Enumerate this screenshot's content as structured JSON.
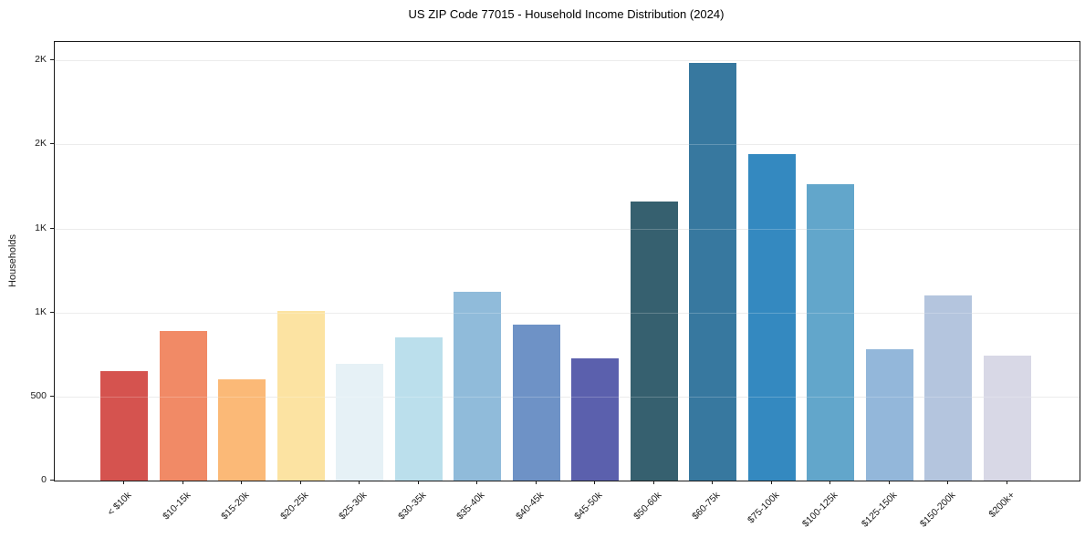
{
  "title": "US ZIP Code 77015 - Household Income Distribution (2024)",
  "background_color": "#ffffff",
  "chart_data": {
    "type": "bar",
    "title": "US ZIP Code 77015 - Household Income Distribution (2024)",
    "xlabel": "",
    "ylabel": "Households",
    "categories": [
      "< $10k",
      "$10-15k",
      "$15-20k",
      "$20-25k",
      "$25-30k",
      "$30-35k",
      "$35-40k",
      "$40-45k",
      "$45-50k",
      "$50-60k",
      "$60-75k",
      "$75-100k",
      "$100-125k",
      "$125-150k",
      "$150-200k",
      "$200k+"
    ],
    "values": [
      650,
      890,
      605,
      1010,
      695,
      850,
      1125,
      930,
      725,
      1660,
      2485,
      1945,
      1765,
      780,
      1100,
      745
    ],
    "bar_colors": [
      "#d5534f",
      "#f18a66",
      "#fbb977",
      "#fce3a2",
      "#e6f1f6",
      "#bbdfec",
      "#90bbda",
      "#6e92c6",
      "#5b60ad",
      "#36606f",
      "#37789f",
      "#3489c0",
      "#62a6cb",
      "#93b7da",
      "#b4c5de",
      "#d8d8e6"
    ],
    "ylim": [
      0,
      2610
    ],
    "yticks": {
      "values": [
        0,
        500,
        1000,
        1500,
        2000,
        2500
      ],
      "labels": [
        "0",
        "500",
        "1K",
        "1K",
        "2K",
        "2K"
      ]
    },
    "grid": "horizontal",
    "gridline_color": "#e7e7e7",
    "spine_color": "#1a1a1a",
    "legend": "none",
    "x_label_rotation_deg": 45
  }
}
